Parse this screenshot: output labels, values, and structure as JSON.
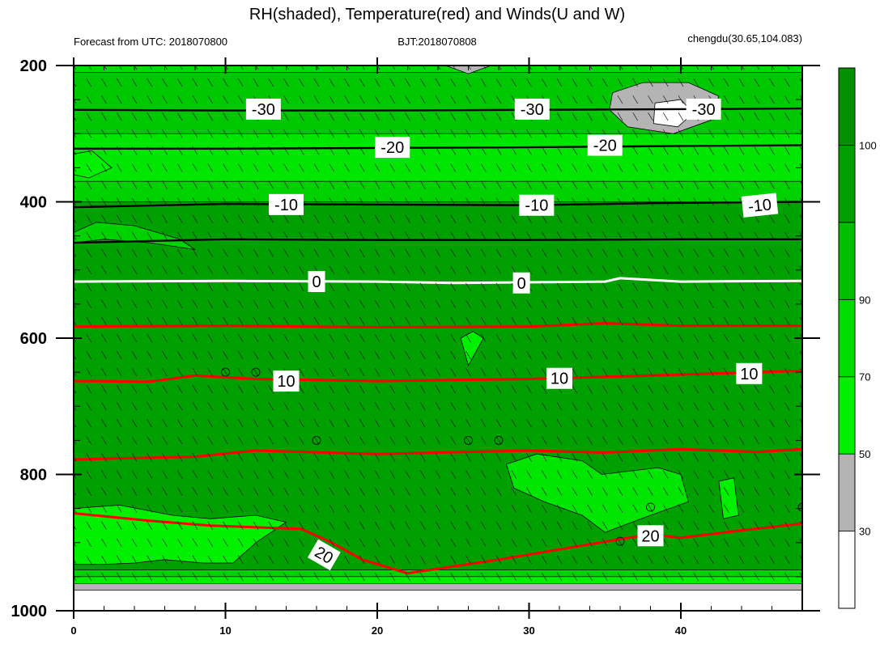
{
  "chart_data": {
    "type": "contour",
    "title": "RH(shaded), Temperature(red) and Winds(U and W)",
    "subtitle_left": "Forecast from UTC: 2018070800",
    "subtitle_center": "BJT:2018070808",
    "subtitle_right": "chengdu(30.65,104.083)",
    "x_ticks": [
      "0",
      "10",
      "20",
      "30",
      "40"
    ],
    "x_tick_values": [
      0,
      10,
      20,
      30,
      40
    ],
    "xlim": [
      0,
      48
    ],
    "y_ticks": [
      "200",
      "400",
      "600",
      "800",
      "1000"
    ],
    "y_tick_values": [
      200,
      400,
      600,
      800,
      1000
    ],
    "ylim": [
      200,
      1000
    ],
    "rh_colorbar": {
      "labels": [
        "30",
        "50",
        "70",
        "90",
        "100"
      ],
      "levels": [
        30,
        50,
        70,
        90,
        100
      ],
      "colors": [
        "#ffffff",
        "#b4b4b4",
        "#00f000",
        "#00dc00",
        "#00be00",
        "#00a000",
        "#009000"
      ]
    },
    "rh_bands": [
      {
        "p_top": 200,
        "p_bottom": 210,
        "color": "#00dc00"
      },
      {
        "p_top": 210,
        "p_bottom": 300,
        "color": "#00c800"
      },
      {
        "p_top": 300,
        "p_bottom": 370,
        "color": "#00e600"
      },
      {
        "p_top": 370,
        "p_bottom": 400,
        "color": "#00d200"
      },
      {
        "p_top": 400,
        "p_bottom": 940,
        "color": "#00a000"
      },
      {
        "p_top": 940,
        "p_bottom": 950,
        "color": "#00d200"
      },
      {
        "p_top": 950,
        "p_bottom": 960,
        "color": "#00f000"
      },
      {
        "p_top": 960,
        "p_bottom": 970,
        "color": "#b4b4b4"
      },
      {
        "p_top": 970,
        "p_bottom": 1000,
        "color": "#ffffff"
      }
    ],
    "rh_patches": [
      {
        "label": "dry-top",
        "color": "#b4b4b4",
        "points": [
          [
            35.5,
            240
          ],
          [
            37.5,
            225
          ],
          [
            40.5,
            225
          ],
          [
            42.5,
            245
          ],
          [
            42,
            280
          ],
          [
            39.5,
            300
          ],
          [
            36.5,
            290
          ],
          [
            35.3,
            265
          ]
        ]
      },
      {
        "label": "very-dry-core",
        "color": "#ffffff",
        "points": [
          [
            38.3,
            255
          ],
          [
            40,
            250
          ],
          [
            40.8,
            270
          ],
          [
            39.8,
            290
          ],
          [
            38.2,
            285
          ]
        ]
      },
      {
        "label": "dry-notch",
        "color": "#b4b4b4",
        "points": [
          [
            24.5,
            200
          ],
          [
            27.5,
            200
          ],
          [
            26,
            212
          ]
        ]
      },
      {
        "label": "moist-left-top",
        "color": "#00f000",
        "points": [
          [
            0,
            330
          ],
          [
            1.2,
            325
          ],
          [
            2.5,
            350
          ],
          [
            1,
            365
          ],
          [
            0,
            360
          ]
        ]
      },
      {
        "label": "moist-left-mid",
        "color": "#00d200",
        "points": [
          [
            0,
            445
          ],
          [
            1.5,
            430
          ],
          [
            4,
            435
          ],
          [
            7,
            455
          ],
          [
            8,
            470
          ],
          [
            5,
            460
          ],
          [
            2,
            455
          ],
          [
            0,
            460
          ]
        ]
      },
      {
        "label": "moist-lower-left",
        "color": "#00f000",
        "points": [
          [
            0,
            850
          ],
          [
            3,
            845
          ],
          [
            6.5,
            860
          ],
          [
            9,
            865
          ],
          [
            12,
            860
          ],
          [
            14,
            870
          ],
          [
            12,
            900
          ],
          [
            10.5,
            930
          ],
          [
            8.5,
            930
          ],
          [
            6,
            925
          ],
          [
            4,
            930
          ],
          [
            2,
            932
          ],
          [
            0,
            932
          ]
        ]
      },
      {
        "label": "moist-lower-right",
        "color": "#00e600",
        "points": [
          [
            28.5,
            785
          ],
          [
            30.5,
            770
          ],
          [
            33.5,
            780
          ],
          [
            34.8,
            800
          ],
          [
            38.5,
            790
          ],
          [
            40,
            800
          ],
          [
            40.5,
            840
          ],
          [
            38,
            860
          ],
          [
            35,
            885
          ],
          [
            33.5,
            860
          ],
          [
            31,
            840
          ],
          [
            29,
            820
          ]
        ]
      },
      {
        "label": "small-patch-a",
        "color": "#00f000",
        "points": [
          [
            25.5,
            600
          ],
          [
            26.3,
            590
          ],
          [
            27,
            600
          ],
          [
            26,
            640
          ]
        ]
      },
      {
        "label": "small-patch-b",
        "color": "#00f000",
        "points": [
          [
            42.5,
            810
          ],
          [
            43.5,
            805
          ],
          [
            43.8,
            860
          ],
          [
            42.8,
            865
          ]
        ]
      }
    ],
    "temperature_contours": [
      {
        "level": "-30",
        "color": "#000000",
        "width": 2.4,
        "points": [
          [
            0,
            265
          ],
          [
            10,
            266
          ],
          [
            20,
            266
          ],
          [
            30,
            265
          ],
          [
            40,
            264
          ],
          [
            48,
            263
          ]
        ]
      },
      {
        "level": "-20",
        "color": "#000000",
        "width": 2.4,
        "points": [
          [
            0,
            322
          ],
          [
            10,
            322
          ],
          [
            20,
            321
          ],
          [
            30,
            320
          ],
          [
            40,
            318
          ],
          [
            48,
            317
          ]
        ]
      },
      {
        "level": "-10",
        "color": "#000000",
        "width": 2.4,
        "points": [
          [
            0,
            408
          ],
          [
            10,
            403
          ],
          [
            20,
            404
          ],
          [
            30,
            405
          ],
          [
            38,
            402
          ],
          [
            48,
            400
          ]
        ]
      },
      {
        "level": "",
        "color": "#000000",
        "width": 2.4,
        "points": [
          [
            0,
            460
          ],
          [
            10,
            455
          ],
          [
            20,
            456
          ],
          [
            30,
            456
          ],
          [
            40,
            455
          ],
          [
            48,
            455
          ]
        ]
      },
      {
        "level": "0",
        "color": "#ffffff",
        "width": 3,
        "points": [
          [
            0,
            517
          ],
          [
            10,
            516
          ],
          [
            20,
            517
          ],
          [
            25,
            519
          ],
          [
            35,
            517
          ],
          [
            36,
            512
          ],
          [
            40,
            517
          ],
          [
            48,
            516
          ]
        ]
      },
      {
        "level": "",
        "color": "#ff0000",
        "width": 3,
        "points": [
          [
            0,
            583
          ],
          [
            10,
            582
          ],
          [
            20,
            584
          ],
          [
            30,
            583
          ],
          [
            35,
            578
          ],
          [
            40,
            582
          ],
          [
            48,
            582
          ]
        ]
      },
      {
        "level": "10",
        "color": "#ff0000",
        "width": 3,
        "points": [
          [
            0,
            663
          ],
          [
            5,
            664
          ],
          [
            8,
            655
          ],
          [
            12,
            660
          ],
          [
            20,
            663
          ],
          [
            30,
            660
          ],
          [
            38,
            655
          ],
          [
            45,
            650
          ],
          [
            48,
            648
          ]
        ]
      },
      {
        "level": "",
        "color": "#ff0000",
        "width": 3,
        "points": [
          [
            0,
            778
          ],
          [
            8,
            774
          ],
          [
            12,
            765
          ],
          [
            20,
            770
          ],
          [
            30,
            765
          ],
          [
            35,
            768
          ],
          [
            40,
            763
          ],
          [
            45,
            767
          ],
          [
            48,
            763
          ]
        ]
      },
      {
        "level": "20",
        "color": "#ff0000",
        "width": 3,
        "points": [
          [
            0,
            857
          ],
          [
            5,
            868
          ],
          [
            9,
            875
          ],
          [
            15,
            880
          ],
          [
            17,
            900
          ],
          [
            19,
            925
          ],
          [
            22,
            945
          ],
          [
            28,
            925
          ],
          [
            32,
            910
          ],
          [
            36,
            895
          ],
          [
            38,
            888
          ],
          [
            40,
            893
          ],
          [
            44,
            882
          ],
          [
            48,
            872
          ]
        ]
      }
    ],
    "contour_labels": [
      {
        "text": "-30",
        "x": 12.5,
        "y": 264
      },
      {
        "text": "-30",
        "x": 30.2,
        "y": 264
      },
      {
        "text": "-30",
        "x": 41.5,
        "y": 264
      },
      {
        "text": "-20",
        "x": 21,
        "y": 320
      },
      {
        "text": "-20",
        "x": 35,
        "y": 317
      },
      {
        "text": "-10",
        "x": 14,
        "y": 404
      },
      {
        "text": "-10",
        "x": 30.5,
        "y": 405
      },
      {
        "text": "-10",
        "x": 45.2,
        "y": 405
      },
      {
        "text": "0",
        "x": 16,
        "y": 517
      },
      {
        "text": "0",
        "x": 29.5,
        "y": 519
      },
      {
        "text": "10",
        "x": 14,
        "y": 663
      },
      {
        "text": "10",
        "x": 32,
        "y": 659
      },
      {
        "text": "10",
        "x": 44.5,
        "y": 652
      },
      {
        "text": "20",
        "x": 16.5,
        "y": 918
      },
      {
        "text": "20",
        "x": 38,
        "y": 890
      }
    ],
    "contour_label_rotation": {
      "-10_right": -6,
      "20_left": 30
    },
    "calm_circles": [
      [
        10,
        650
      ],
      [
        12,
        650
      ],
      [
        16,
        750
      ],
      [
        26,
        750
      ],
      [
        28,
        750
      ],
      [
        38,
        848
      ],
      [
        36,
        898
      ],
      [
        48,
        848
      ]
    ],
    "wind_grid": {
      "x_step": 1,
      "p_levels": [
        200,
        225,
        250,
        275,
        300,
        325,
        350,
        375,
        400,
        425,
        450,
        475,
        500,
        525,
        550,
        575,
        600,
        625,
        650,
        675,
        700,
        725,
        750,
        775,
        800,
        825,
        850,
        875,
        900,
        925,
        950
      ]
    }
  }
}
